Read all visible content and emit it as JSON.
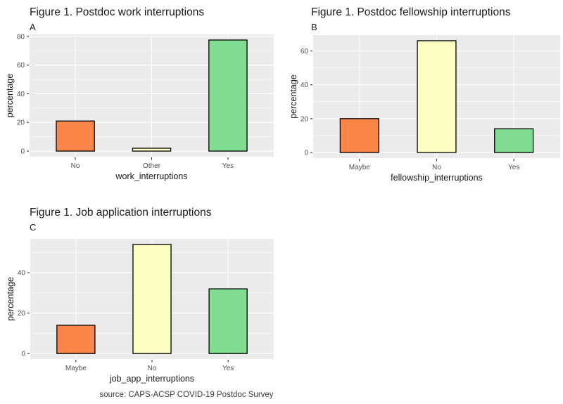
{
  "figure": {
    "caption": "source: CAPS-ACSP COVID-19 Postdoc Survey",
    "colors": {
      "background": "#FFFFFF",
      "panel_background": "#EBEBEB",
      "gridline": "#FFFFFF",
      "bar_outline": "#000000",
      "tick_label": "#4D4D4D",
      "axis_title": "#1A1A1A",
      "title": "#1A1A1A",
      "tick_mark": "#333333",
      "caption": "#3A3A3A"
    }
  },
  "chart_data": [
    {
      "type": "bar",
      "tag": "A",
      "title": "Figure 1. Postdoc work interruptions",
      "xlabel": "work_interruptions",
      "ylabel": "percentage",
      "categories": [
        "No",
        "Other",
        "Yes"
      ],
      "values": [
        21,
        2,
        77.5
      ],
      "bar_colors": [
        "#FC8549",
        "#FDFFC2",
        "#7FDC90"
      ],
      "yticks": [
        0,
        20,
        40,
        60,
        80
      ],
      "ylim": [
        -3.9,
        81.4
      ],
      "grid": true,
      "legend": "none"
    },
    {
      "type": "bar",
      "tag": "B",
      "title": "Figure 1. Postdoc fellowship interruptions",
      "xlabel": "fellowship_interruptions",
      "ylabel": "percentage",
      "categories": [
        "Maybe",
        "No",
        "Yes"
      ],
      "values": [
        20,
        66,
        14
      ],
      "bar_colors": [
        "#FC8549",
        "#FDFFC2",
        "#7FDC90"
      ],
      "yticks": [
        0,
        20,
        40,
        60
      ],
      "ylim": [
        -3.3,
        69.3
      ],
      "grid": true,
      "legend": "none"
    },
    {
      "type": "bar",
      "tag": "C",
      "title": "Figure 1. Job application interruptions",
      "xlabel": "job_app_interruptions",
      "ylabel": "percentage",
      "categories": [
        "Maybe",
        "No",
        "Yes"
      ],
      "values": [
        14,
        54,
        32
      ],
      "bar_colors": [
        "#FC8549",
        "#FDFFC2",
        "#7FDC90"
      ],
      "yticks": [
        0,
        20,
        40
      ],
      "ylim": [
        -2.7,
        56.7
      ],
      "grid": true,
      "legend": "none",
      "caption": "source: CAPS-ACSP COVID-19 Postdoc Survey"
    }
  ]
}
